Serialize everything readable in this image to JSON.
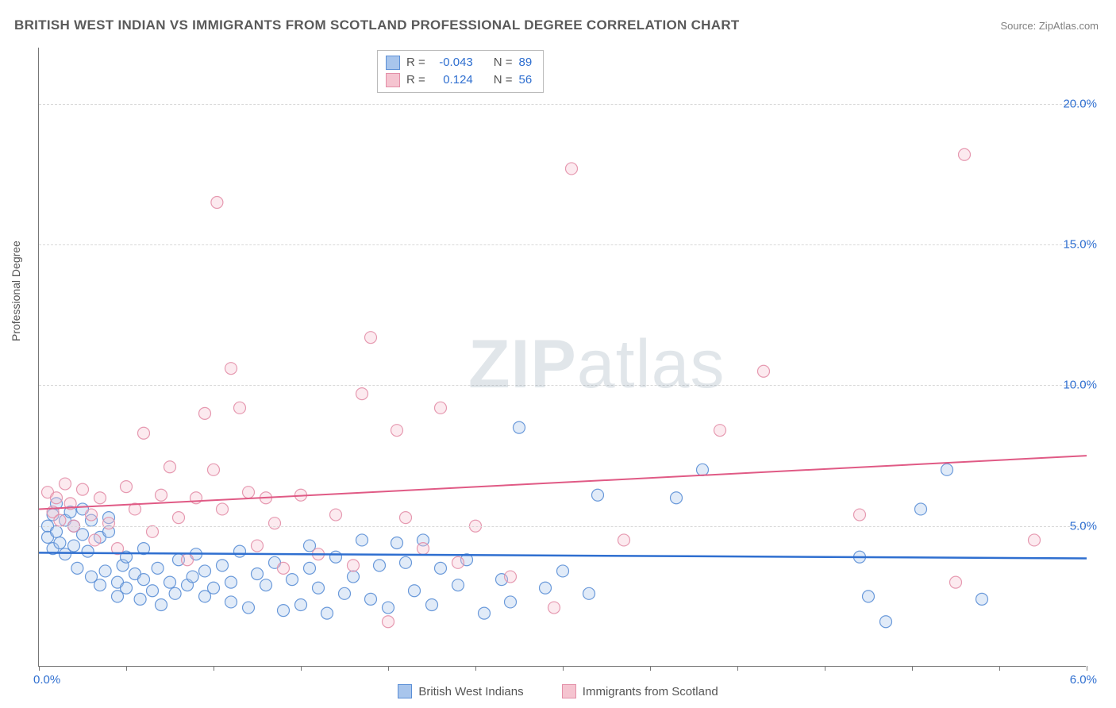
{
  "title": "BRITISH WEST INDIAN VS IMMIGRANTS FROM SCOTLAND PROFESSIONAL DEGREE CORRELATION CHART",
  "source": "Source: ZipAtlas.com",
  "ylabel": "Professional Degree",
  "watermark": {
    "part1": "ZIP",
    "part2": "atlas"
  },
  "chart": {
    "type": "scatter",
    "xlim": [
      0.0,
      6.0
    ],
    "ylim": [
      0.0,
      22.0
    ],
    "x_ticks_visible": [
      0,
      0.5,
      1.0,
      1.5,
      2.0,
      2.5,
      3.0,
      3.5,
      4.0,
      4.5,
      5.0,
      5.5,
      6.0
    ],
    "x_tick_labels": {
      "0": "0.0%",
      "6": "6.0%"
    },
    "y_grid": [
      5.0,
      10.0,
      15.0,
      20.0
    ],
    "y_tick_labels": {
      "5": "5.0%",
      "10": "10.0%",
      "15": "15.0%",
      "20": "20.0%"
    },
    "background_color": "#ffffff",
    "grid_color": "#d8d8d8",
    "axis_color": "#777777",
    "label_color": "#555555",
    "tick_label_color": "#2f6fd0",
    "marker_radius": 7.5,
    "marker_stroke_opacity": 0.9,
    "marker_fill_opacity": 0.35,
    "series": [
      {
        "name": "British West Indians",
        "color_fill": "#a8c5ec",
        "color_stroke": "#5b8fd6",
        "R": "-0.043",
        "N": "89",
        "trend": {
          "y_at_x0": 4.05,
          "y_at_x6": 3.85,
          "color": "#2f6fd0",
          "width": 2.5
        },
        "points": [
          [
            0.05,
            5.0
          ],
          [
            0.05,
            4.6
          ],
          [
            0.08,
            4.2
          ],
          [
            0.08,
            5.4
          ],
          [
            0.1,
            4.8
          ],
          [
            0.1,
            5.8
          ],
          [
            0.12,
            4.4
          ],
          [
            0.15,
            5.2
          ],
          [
            0.15,
            4.0
          ],
          [
            0.18,
            5.5
          ],
          [
            0.2,
            5.0
          ],
          [
            0.2,
            4.3
          ],
          [
            0.22,
            3.5
          ],
          [
            0.25,
            5.6
          ],
          [
            0.25,
            4.7
          ],
          [
            0.28,
            4.1
          ],
          [
            0.3,
            5.2
          ],
          [
            0.3,
            3.2
          ],
          [
            0.35,
            4.6
          ],
          [
            0.35,
            2.9
          ],
          [
            0.38,
            3.4
          ],
          [
            0.4,
            4.8
          ],
          [
            0.4,
            5.3
          ],
          [
            0.45,
            3.0
          ],
          [
            0.45,
            2.5
          ],
          [
            0.48,
            3.6
          ],
          [
            0.5,
            3.9
          ],
          [
            0.5,
            2.8
          ],
          [
            0.55,
            3.3
          ],
          [
            0.58,
            2.4
          ],
          [
            0.6,
            3.1
          ],
          [
            0.6,
            4.2
          ],
          [
            0.65,
            2.7
          ],
          [
            0.68,
            3.5
          ],
          [
            0.7,
            2.2
          ],
          [
            0.75,
            3.0
          ],
          [
            0.78,
            2.6
          ],
          [
            0.8,
            3.8
          ],
          [
            0.85,
            2.9
          ],
          [
            0.88,
            3.2
          ],
          [
            0.9,
            4.0
          ],
          [
            0.95,
            2.5
          ],
          [
            0.95,
            3.4
          ],
          [
            1.0,
            2.8
          ],
          [
            1.05,
            3.6
          ],
          [
            1.1,
            2.3
          ],
          [
            1.1,
            3.0
          ],
          [
            1.15,
            4.1
          ],
          [
            1.2,
            2.1
          ],
          [
            1.25,
            3.3
          ],
          [
            1.3,
            2.9
          ],
          [
            1.35,
            3.7
          ],
          [
            1.4,
            2.0
          ],
          [
            1.45,
            3.1
          ],
          [
            1.5,
            2.2
          ],
          [
            1.55,
            3.5
          ],
          [
            1.55,
            4.3
          ],
          [
            1.6,
            2.8
          ],
          [
            1.65,
            1.9
          ],
          [
            1.7,
            3.9
          ],
          [
            1.75,
            2.6
          ],
          [
            1.8,
            3.2
          ],
          [
            1.85,
            4.5
          ],
          [
            1.9,
            2.4
          ],
          [
            1.95,
            3.6
          ],
          [
            2.0,
            2.1
          ],
          [
            2.05,
            4.4
          ],
          [
            2.1,
            3.7
          ],
          [
            2.15,
            2.7
          ],
          [
            2.2,
            4.5
          ],
          [
            2.25,
            2.2
          ],
          [
            2.3,
            3.5
          ],
          [
            2.4,
            2.9
          ],
          [
            2.45,
            3.8
          ],
          [
            2.55,
            1.9
          ],
          [
            2.65,
            3.1
          ],
          [
            2.7,
            2.3
          ],
          [
            2.75,
            8.5
          ],
          [
            2.9,
            2.8
          ],
          [
            3.0,
            3.4
          ],
          [
            3.15,
            2.6
          ],
          [
            3.2,
            6.1
          ],
          [
            3.65,
            6.0
          ],
          [
            3.8,
            7.0
          ],
          [
            4.7,
            3.9
          ],
          [
            4.75,
            2.5
          ],
          [
            4.85,
            1.6
          ],
          [
            5.05,
            5.6
          ],
          [
            5.2,
            7.0
          ],
          [
            5.4,
            2.4
          ]
        ]
      },
      {
        "name": "Immigrants from Scotland",
        "color_fill": "#f5c4d0",
        "color_stroke": "#e38fa8",
        "R": "0.124",
        "N": "56",
        "trend": {
          "y_at_x0": 5.6,
          "y_at_x6": 7.5,
          "color": "#e05a85",
          "width": 2.0
        },
        "points": [
          [
            0.05,
            6.2
          ],
          [
            0.08,
            5.5
          ],
          [
            0.1,
            6.0
          ],
          [
            0.12,
            5.2
          ],
          [
            0.15,
            6.5
          ],
          [
            0.18,
            5.8
          ],
          [
            0.2,
            5.0
          ],
          [
            0.25,
            6.3
          ],
          [
            0.3,
            5.4
          ],
          [
            0.32,
            4.5
          ],
          [
            0.35,
            6.0
          ],
          [
            0.4,
            5.1
          ],
          [
            0.45,
            4.2
          ],
          [
            0.5,
            6.4
          ],
          [
            0.55,
            5.6
          ],
          [
            0.6,
            8.3
          ],
          [
            0.65,
            4.8
          ],
          [
            0.7,
            6.1
          ],
          [
            0.75,
            7.1
          ],
          [
            0.8,
            5.3
          ],
          [
            0.85,
            3.8
          ],
          [
            0.9,
            6.0
          ],
          [
            0.95,
            9.0
          ],
          [
            1.0,
            7.0
          ],
          [
            1.02,
            16.5
          ],
          [
            1.05,
            5.6
          ],
          [
            1.1,
            10.6
          ],
          [
            1.15,
            9.2
          ],
          [
            1.2,
            6.2
          ],
          [
            1.25,
            4.3
          ],
          [
            1.3,
            6.0
          ],
          [
            1.35,
            5.1
          ],
          [
            1.4,
            3.5
          ],
          [
            1.5,
            6.1
          ],
          [
            1.6,
            4.0
          ],
          [
            1.7,
            5.4
          ],
          [
            1.8,
            3.6
          ],
          [
            1.85,
            9.7
          ],
          [
            1.9,
            11.7
          ],
          [
            2.0,
            1.6
          ],
          [
            2.05,
            8.4
          ],
          [
            2.1,
            5.3
          ],
          [
            2.2,
            4.2
          ],
          [
            2.3,
            9.2
          ],
          [
            2.4,
            3.7
          ],
          [
            2.5,
            5.0
          ],
          [
            2.7,
            3.2
          ],
          [
            2.95,
            2.1
          ],
          [
            3.05,
            17.7
          ],
          [
            3.35,
            4.5
          ],
          [
            3.9,
            8.4
          ],
          [
            4.15,
            10.5
          ],
          [
            4.7,
            5.4
          ],
          [
            5.25,
            3.0
          ],
          [
            5.3,
            18.2
          ],
          [
            5.7,
            4.5
          ]
        ]
      }
    ]
  },
  "stats_box": {
    "r_label": "R =",
    "n_label": "N ="
  },
  "bottom_legend": {
    "items": [
      "British West Indians",
      "Immigrants from Scotland"
    ]
  }
}
